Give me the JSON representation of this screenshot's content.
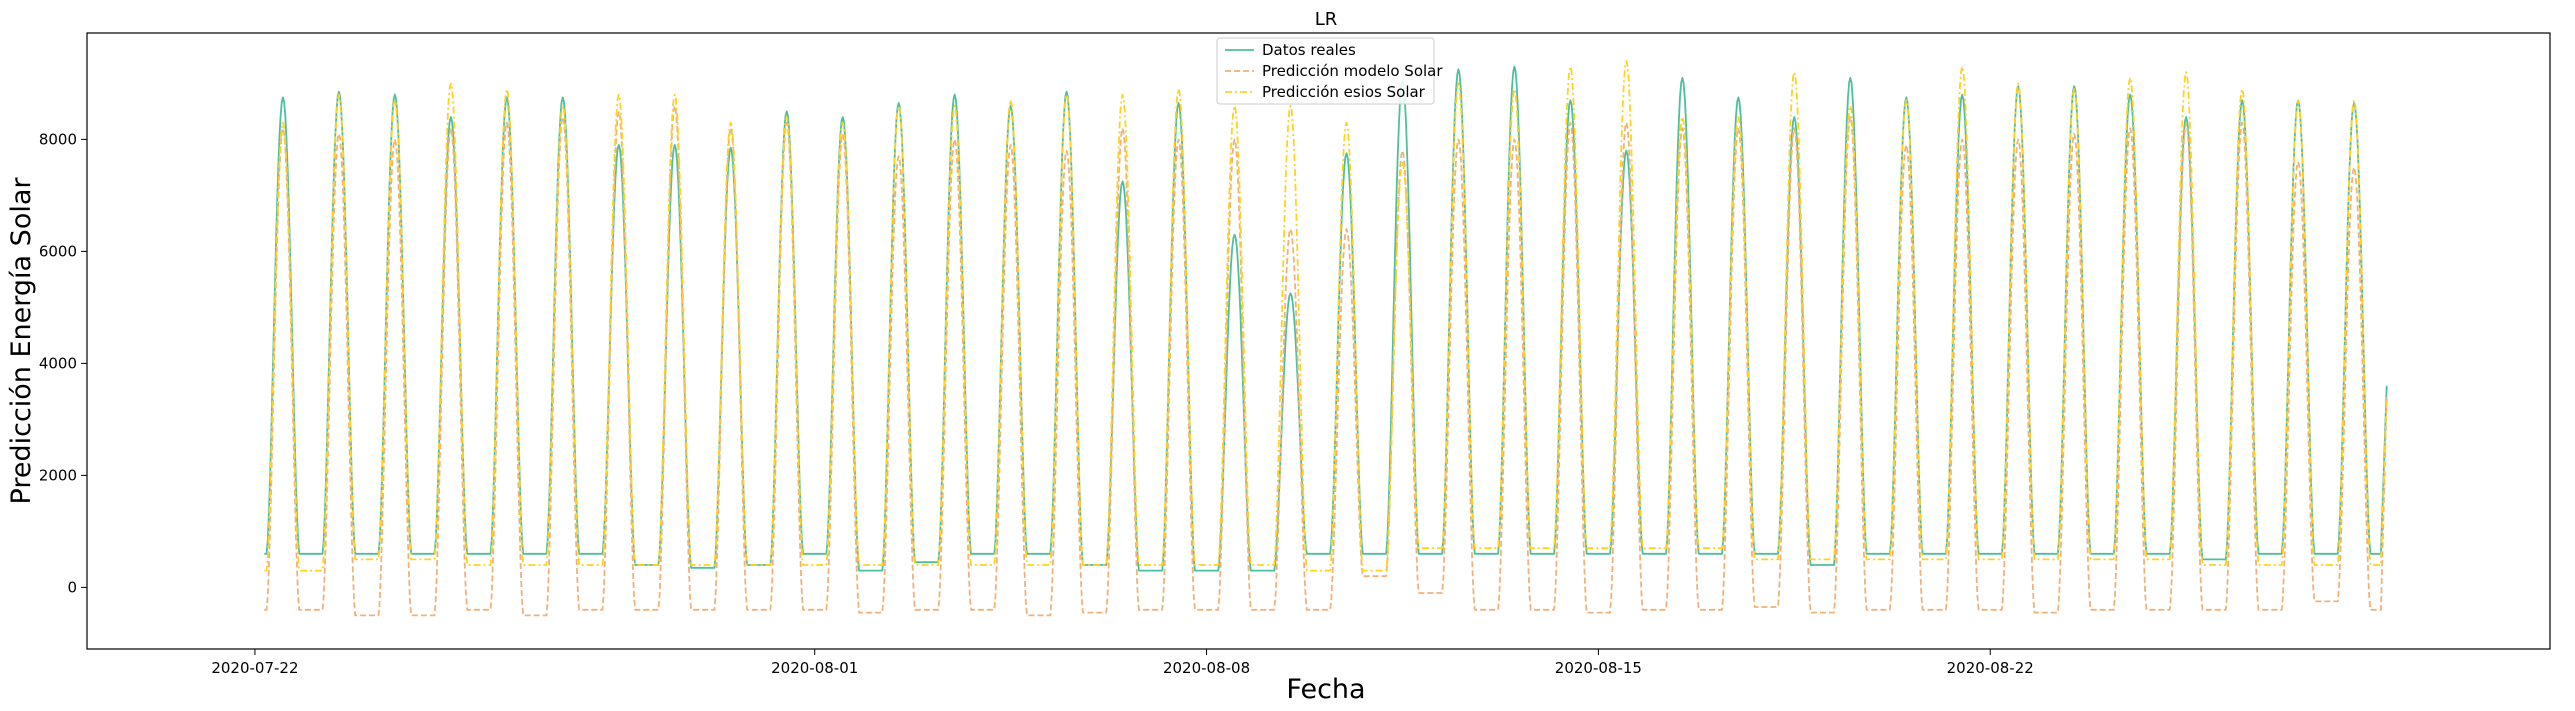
{
  "chart_data": {
    "type": "line",
    "title": "LR",
    "xlabel": "Fecha",
    "ylabel": "Predicción Energía Solar",
    "x_start": "2020-07-22",
    "xlim": [
      "2020-07-19",
      "2020-09-01"
    ],
    "ylim": [
      -1100,
      9900
    ],
    "x_ticks": [
      "2020-07-22",
      "2020-08-01",
      "2020-08-08",
      "2020-08-15",
      "2020-08-22"
    ],
    "y_ticks": [
      0,
      2000,
      4000,
      6000,
      8000
    ],
    "grid": false,
    "legend_position": "top-center",
    "series": [
      {
        "name": "Datos reales",
        "color": "#4dbf9e",
        "style": "solid",
        "daily_peaks": [
          8750,
          8850,
          8800,
          8400,
          8750,
          8750,
          7900,
          7900,
          7850,
          8500,
          8400,
          8650,
          8800,
          8600,
          8850,
          7250,
          8650,
          6300,
          5250,
          7750,
          9050,
          9250,
          9300,
          8700,
          7800,
          9100,
          8750,
          8400,
          9100,
          8750,
          8800,
          8950,
          8950,
          8800,
          8400,
          8700,
          8700,
          8650
        ],
        "night_values": [
          600,
          600,
          600,
          600,
          600,
          600,
          400,
          350,
          400,
          600,
          300,
          450,
          600,
          600,
          400,
          300,
          300,
          300,
          600,
          600,
          600,
          600,
          600,
          600,
          600,
          600,
          600,
          400,
          600,
          600,
          600,
          600,
          600,
          600,
          500,
          600,
          600,
          600
        ]
      },
      {
        "name": "Predicción modelo Solar",
        "color": "#f0b27a",
        "style": "dashed",
        "daily_peaks": [
          8200,
          8100,
          8000,
          8200,
          8300,
          8400,
          8500,
          8600,
          8200,
          8300,
          8100,
          7700,
          8000,
          7900,
          7800,
          8200,
          8000,
          8000,
          6400,
          6400,
          7800,
          8000,
          8000,
          8300,
          8300,
          8200,
          8200,
          8200,
          8400,
          7900,
          8000,
          8000,
          8100,
          8200,
          8300,
          8300,
          7600,
          7500
        ],
        "night_values": [
          -400,
          -500,
          -500,
          -400,
          -500,
          -400,
          -400,
          -400,
          -400,
          -400,
          -450,
          -400,
          -400,
          -500,
          -450,
          -400,
          -400,
          -400,
          -400,
          200,
          -100,
          -400,
          -400,
          -450,
          -400,
          -400,
          -350,
          -450,
          -400,
          -400,
          -400,
          -450,
          -400,
          -400,
          -400,
          -400,
          -250,
          -400
        ]
      },
      {
        "name": "Predicción esios Solar",
        "color": "#ffd21f",
        "style": "dashdot",
        "daily_peaks": [
          8300,
          8800,
          8700,
          9000,
          8900,
          8600,
          8800,
          8800,
          8300,
          8400,
          8300,
          8600,
          8600,
          8700,
          8800,
          8800,
          8900,
          8600,
          8600,
          8300,
          7600,
          9000,
          8900,
          9300,
          9400,
          8400,
          8400,
          9200,
          8600,
          8700,
          9300,
          9000,
          8900,
          9100,
          9200,
          8900,
          8700,
          8700
        ],
        "night_values": [
          300,
          500,
          500,
          400,
          400,
          400,
          400,
          400,
          400,
          400,
          400,
          400,
          400,
          400,
          400,
          400,
          400,
          400,
          300,
          300,
          700,
          700,
          700,
          700,
          700,
          700,
          500,
          500,
          500,
          500,
          500,
          500,
          500,
          500,
          400,
          400,
          400,
          400
        ]
      }
    ]
  }
}
